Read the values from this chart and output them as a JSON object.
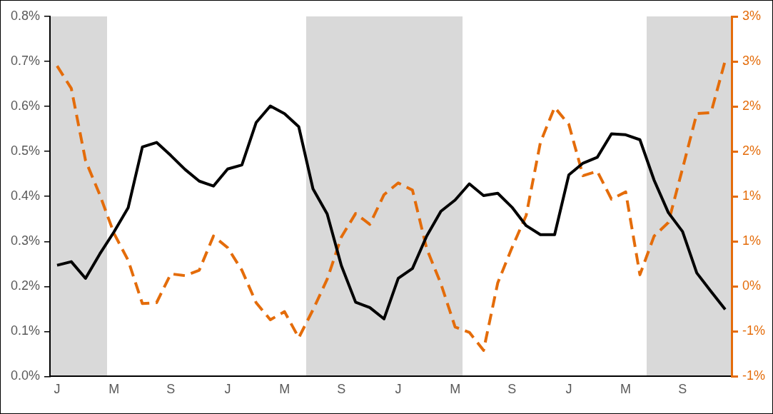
{
  "chart_data": {
    "type": "line",
    "categories": [
      "J",
      null,
      null,
      null,
      "M",
      null,
      null,
      null,
      "S",
      null,
      null,
      null,
      "J",
      null,
      null,
      null,
      "M",
      null,
      null,
      null,
      "S",
      null,
      null,
      null,
      "J",
      null,
      null,
      null,
      "M",
      null,
      null,
      null,
      "S",
      null,
      null,
      null,
      "J",
      null,
      null,
      null,
      "M",
      null,
      null,
      null,
      "S",
      null,
      null,
      null
    ],
    "ylim": [
      0,
      0.8
    ],
    "yticks": [
      {
        "value": 0,
        "label": "0.0%"
      },
      {
        "value": 0.1,
        "label": "0.1%"
      },
      {
        "value": 0.2,
        "label": "0.2%"
      },
      {
        "value": 0.3,
        "label": "0.3%"
      },
      {
        "value": 0.4,
        "label": "0.4%"
      },
      {
        "value": 0.5,
        "label": "0.5%"
      },
      {
        "value": 0.6,
        "label": "0.6%"
      },
      {
        "value": 0.7,
        "label": "0.7%"
      },
      {
        "value": 0.8,
        "label": "0.8%"
      }
    ],
    "y2lim": [
      -1,
      3
    ],
    "y2ticks": [
      {
        "value": -1,
        "label": "-1%"
      },
      {
        "value": -0.5,
        "label": "-1%"
      },
      {
        "value": 0,
        "label": "0%"
      },
      {
        "value": 0.5,
        "label": "1%"
      },
      {
        "value": 1,
        "label": "1%"
      },
      {
        "value": 1.5,
        "label": "2%"
      },
      {
        "value": 2,
        "label": "2%"
      },
      {
        "value": 2.5,
        "label": "3%"
      },
      {
        "value": 3,
        "label": "3%"
      }
    ],
    "series": [
      {
        "color": "#000000",
        "values": [
          0.247,
          0.255,
          0.218,
          0.272,
          0.321,
          0.375,
          0.51,
          0.52,
          0.491,
          0.46,
          0.434,
          0.423,
          0.461,
          0.47,
          0.564,
          0.601,
          0.584,
          0.555,
          0.417,
          0.361,
          0.246,
          0.165,
          0.153,
          0.128,
          0.218,
          0.24,
          0.312,
          0.367,
          0.392,
          0.428,
          0.402,
          0.407,
          0.376,
          0.335,
          0.315,
          0.315,
          0.448,
          0.474,
          0.487,
          0.539,
          0.537,
          0.526,
          0.436,
          0.364,
          0.322,
          0.23,
          0.189,
          0.149
        ]
      },
      {
        "color": "#e46c0a",
        "axis": "y2",
        "line_style": "dashed",
        "values": [
          2.45,
          2.2,
          1.4,
          1.02,
          0.59,
          0.29,
          -0.19,
          -0.18,
          0.14,
          0.12,
          0.18,
          0.56,
          0.43,
          0.18,
          -0.18,
          -0.37,
          -0.28,
          -0.57,
          -0.26,
          0.08,
          0.55,
          0.81,
          0.69,
          1.02,
          1.15,
          1.07,
          0.42,
          0.03,
          -0.45,
          -0.51,
          -0.71,
          0.04,
          0.43,
          0.79,
          1.6,
          1.99,
          1.8,
          1.23,
          1.28,
          0.97,
          1.05,
          0.13,
          0.56,
          0.71,
          1.31,
          1.92,
          1.93,
          2.51
        ]
      }
    ],
    "grid": false,
    "legend": false,
    "marker": "none"
  }
}
